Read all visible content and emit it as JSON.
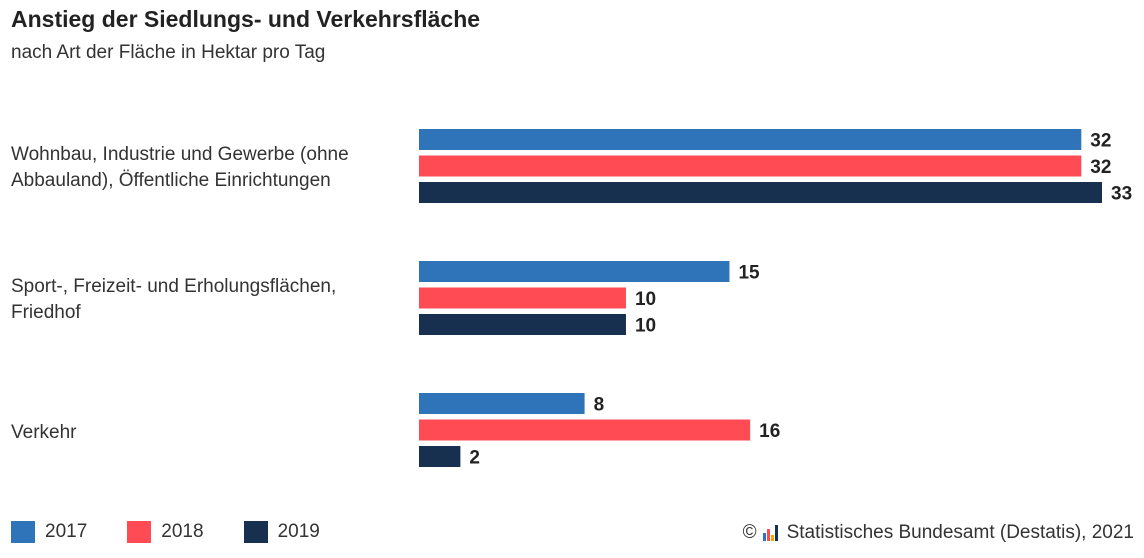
{
  "header": {
    "title": "Anstieg der Siedlungs- und Verkehrsfläche",
    "subtitle": "nach Art der Fläche in Hektar pro Tag"
  },
  "chart_data": {
    "type": "bar",
    "orientation": "horizontal",
    "title": "Anstieg der Siedlungs- und Verkehrsfläche",
    "subtitle": "nach Art der Fläche in Hektar pro Tag",
    "categories": [
      "Wohnbau, Industrie und Gewerbe (ohne Abbauland), Öffentliche Einrichtungen",
      "Sport-, Freizeit- und Erholungsflächen, Friedhof",
      "Verkehr"
    ],
    "series": [
      {
        "name": "2017",
        "color": "#2f73b8",
        "values": [
          32,
          15,
          8
        ]
      },
      {
        "name": "2018",
        "color": "#ff4b53",
        "values": [
          32,
          10,
          16
        ]
      },
      {
        "name": "2019",
        "color": "#18304f",
        "values": [
          33,
          10,
          2
        ]
      }
    ],
    "xlim": [
      0,
      33
    ],
    "grid": false,
    "data_labels": true,
    "legend_position": "bottom-left"
  },
  "legend": {
    "items": [
      {
        "label": "2017",
        "color": "#2f73b8"
      },
      {
        "label": "2018",
        "color": "#ff4b53"
      },
      {
        "label": "2019",
        "color": "#18304f"
      }
    ]
  },
  "source": {
    "copyright_symbol": "©",
    "text": "Statistisches Bundesamt (Destatis), 2021",
    "logo_colors": [
      "#2f73b8",
      "#ff4b53",
      "#f2a900",
      "#18304f"
    ]
  }
}
